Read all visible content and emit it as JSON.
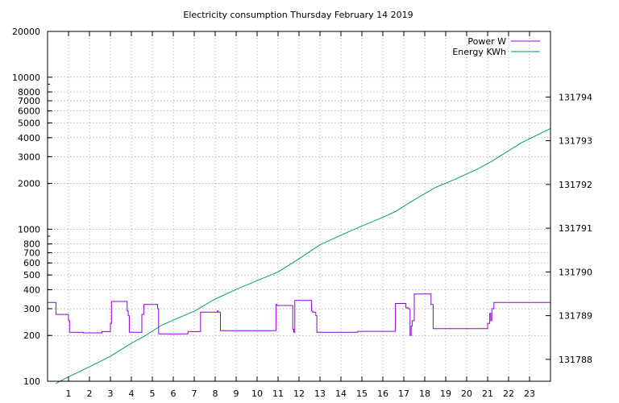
{
  "chart_data": {
    "type": "line",
    "title": "Electricity consumption Thursday February 14 2019",
    "xlabel": "",
    "ylabel": "",
    "y2label": "",
    "x_ticks": [
      1,
      2,
      3,
      4,
      5,
      6,
      7,
      8,
      9,
      10,
      11,
      12,
      13,
      14,
      15,
      16,
      17,
      18,
      19,
      20,
      21,
      22,
      23
    ],
    "xlim": [
      0,
      24
    ],
    "y_scale": "log",
    "ylim": [
      100,
      20000
    ],
    "y_ticks": [
      100,
      200,
      300,
      400,
      500,
      600,
      700,
      800,
      1000,
      2000,
      3000,
      4000,
      5000,
      6000,
      7000,
      8000,
      10000,
      20000
    ],
    "y2lim": [
      131787.5,
      131795.5
    ],
    "y2_ticks": [
      131788,
      131789,
      131790,
      131791,
      131792,
      131793,
      131794
    ],
    "grid": true,
    "legend_position": "top-right",
    "series": [
      {
        "name": "Power W",
        "axis": "y",
        "color": "#9400d3",
        "step": true,
        "x": [
          0,
          0.4,
          1.0,
          1.05,
          1.7,
          2.6,
          3.0,
          3.05,
          3.8,
          3.85,
          3.9,
          4.5,
          4.6,
          5.25,
          5.3,
          5.5,
          6.7,
          7.3,
          8.1,
          8.15,
          8.25,
          8.3,
          9.5,
          10.9,
          10.95,
          11.7,
          11.75,
          11.8,
          12.6,
          12.65,
          12.8,
          12.85,
          13.5,
          14.8,
          16.6,
          17.1,
          17.2,
          17.3,
          17.35,
          17.4,
          17.5,
          18.3,
          18.4,
          21.0,
          21.1,
          21.15,
          21.2,
          21.3,
          24.0
        ],
        "values": [
          330,
          275,
          250,
          210,
          208,
          212,
          240,
          335,
          290,
          270,
          210,
          275,
          320,
          300,
          205,
          205,
          212,
          285,
          290,
          285,
          215,
          215,
          215,
          320,
          315,
          220,
          210,
          340,
          290,
          285,
          270,
          210,
          210,
          213,
          325,
          305,
          300,
          200,
          230,
          250,
          375,
          320,
          222,
          240,
          280,
          250,
          300,
          330,
          330
        ]
      },
      {
        "name": "Energy KWh",
        "axis": "y2",
        "color": "#009e73",
        "x": [
          0.4,
          1.0,
          2.0,
          3.0,
          4.0,
          4.7,
          5.4,
          6.5,
          7.0,
          8.0,
          9.0,
          10.0,
          11.0,
          12.0,
          13.0,
          14.0,
          15.0,
          16.0,
          16.6,
          17.5,
          18.5,
          19.5,
          20.5,
          21.2,
          22.0,
          22.6,
          24.0
        ],
        "values": [
          131787.45,
          131787.6,
          131787.83,
          131788.07,
          131788.37,
          131788.55,
          131788.77,
          131789.0,
          131789.1,
          131789.38,
          131789.6,
          131789.8,
          131790.0,
          131790.3,
          131790.62,
          131790.84,
          131791.05,
          131791.25,
          131791.38,
          131791.65,
          131791.93,
          131792.13,
          131792.35,
          131792.53,
          131792.77,
          131792.95,
          131793.28
        ]
      }
    ]
  }
}
